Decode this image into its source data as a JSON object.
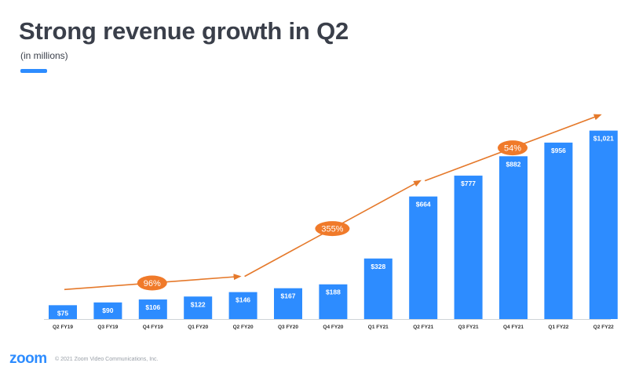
{
  "header": {
    "title": "Strong revenue growth in Q2",
    "subtitle": "(in millions)"
  },
  "footer": {
    "logo": "zoom",
    "copyright": "© 2021 Zoom Video Communications, Inc."
  },
  "colors": {
    "bar": "#2d8cff",
    "arrow": "#e5792b",
    "bubble": "#f07a2a",
    "axis": "#cfd3d8",
    "tick_text": "#333333",
    "label_text": "#ffffff"
  },
  "chart_data": {
    "type": "bar",
    "title": "Strong revenue growth in Q2",
    "subtitle": "(in millions)",
    "xlabel": "",
    "ylabel": "",
    "ylim": [
      0,
      1100
    ],
    "grid": false,
    "categories": [
      "Q2 FY19",
      "Q3 FY19",
      "Q4 FY19",
      "Q1 FY20",
      "Q2 FY20",
      "Q3 FY20",
      "Q4 FY20",
      "Q1 FY21",
      "Q2 FY21",
      "Q3 FY21",
      "Q4 FY21",
      "Q1 FY22",
      "Q2 FY22"
    ],
    "values": [
      75,
      90,
      106,
      122,
      146,
      167,
      188,
      328,
      664,
      777,
      882,
      956,
      1021
    ],
    "value_labels": [
      "$75",
      "$90",
      "$106",
      "$122",
      "$146",
      "$167",
      "$188",
      "$328",
      "$664",
      "$777",
      "$882",
      "$956",
      "$1,021"
    ],
    "annotations": [
      {
        "type": "growth-arrow",
        "from": "Q2 FY19",
        "to": "Q2 FY20",
        "label": "96%"
      },
      {
        "type": "growth-arrow",
        "from": "Q2 FY20",
        "to": "Q2 FY21",
        "label": "355%"
      },
      {
        "type": "growth-arrow",
        "from": "Q2 FY21",
        "to": "Q2 FY22",
        "label": "54%"
      }
    ]
  }
}
